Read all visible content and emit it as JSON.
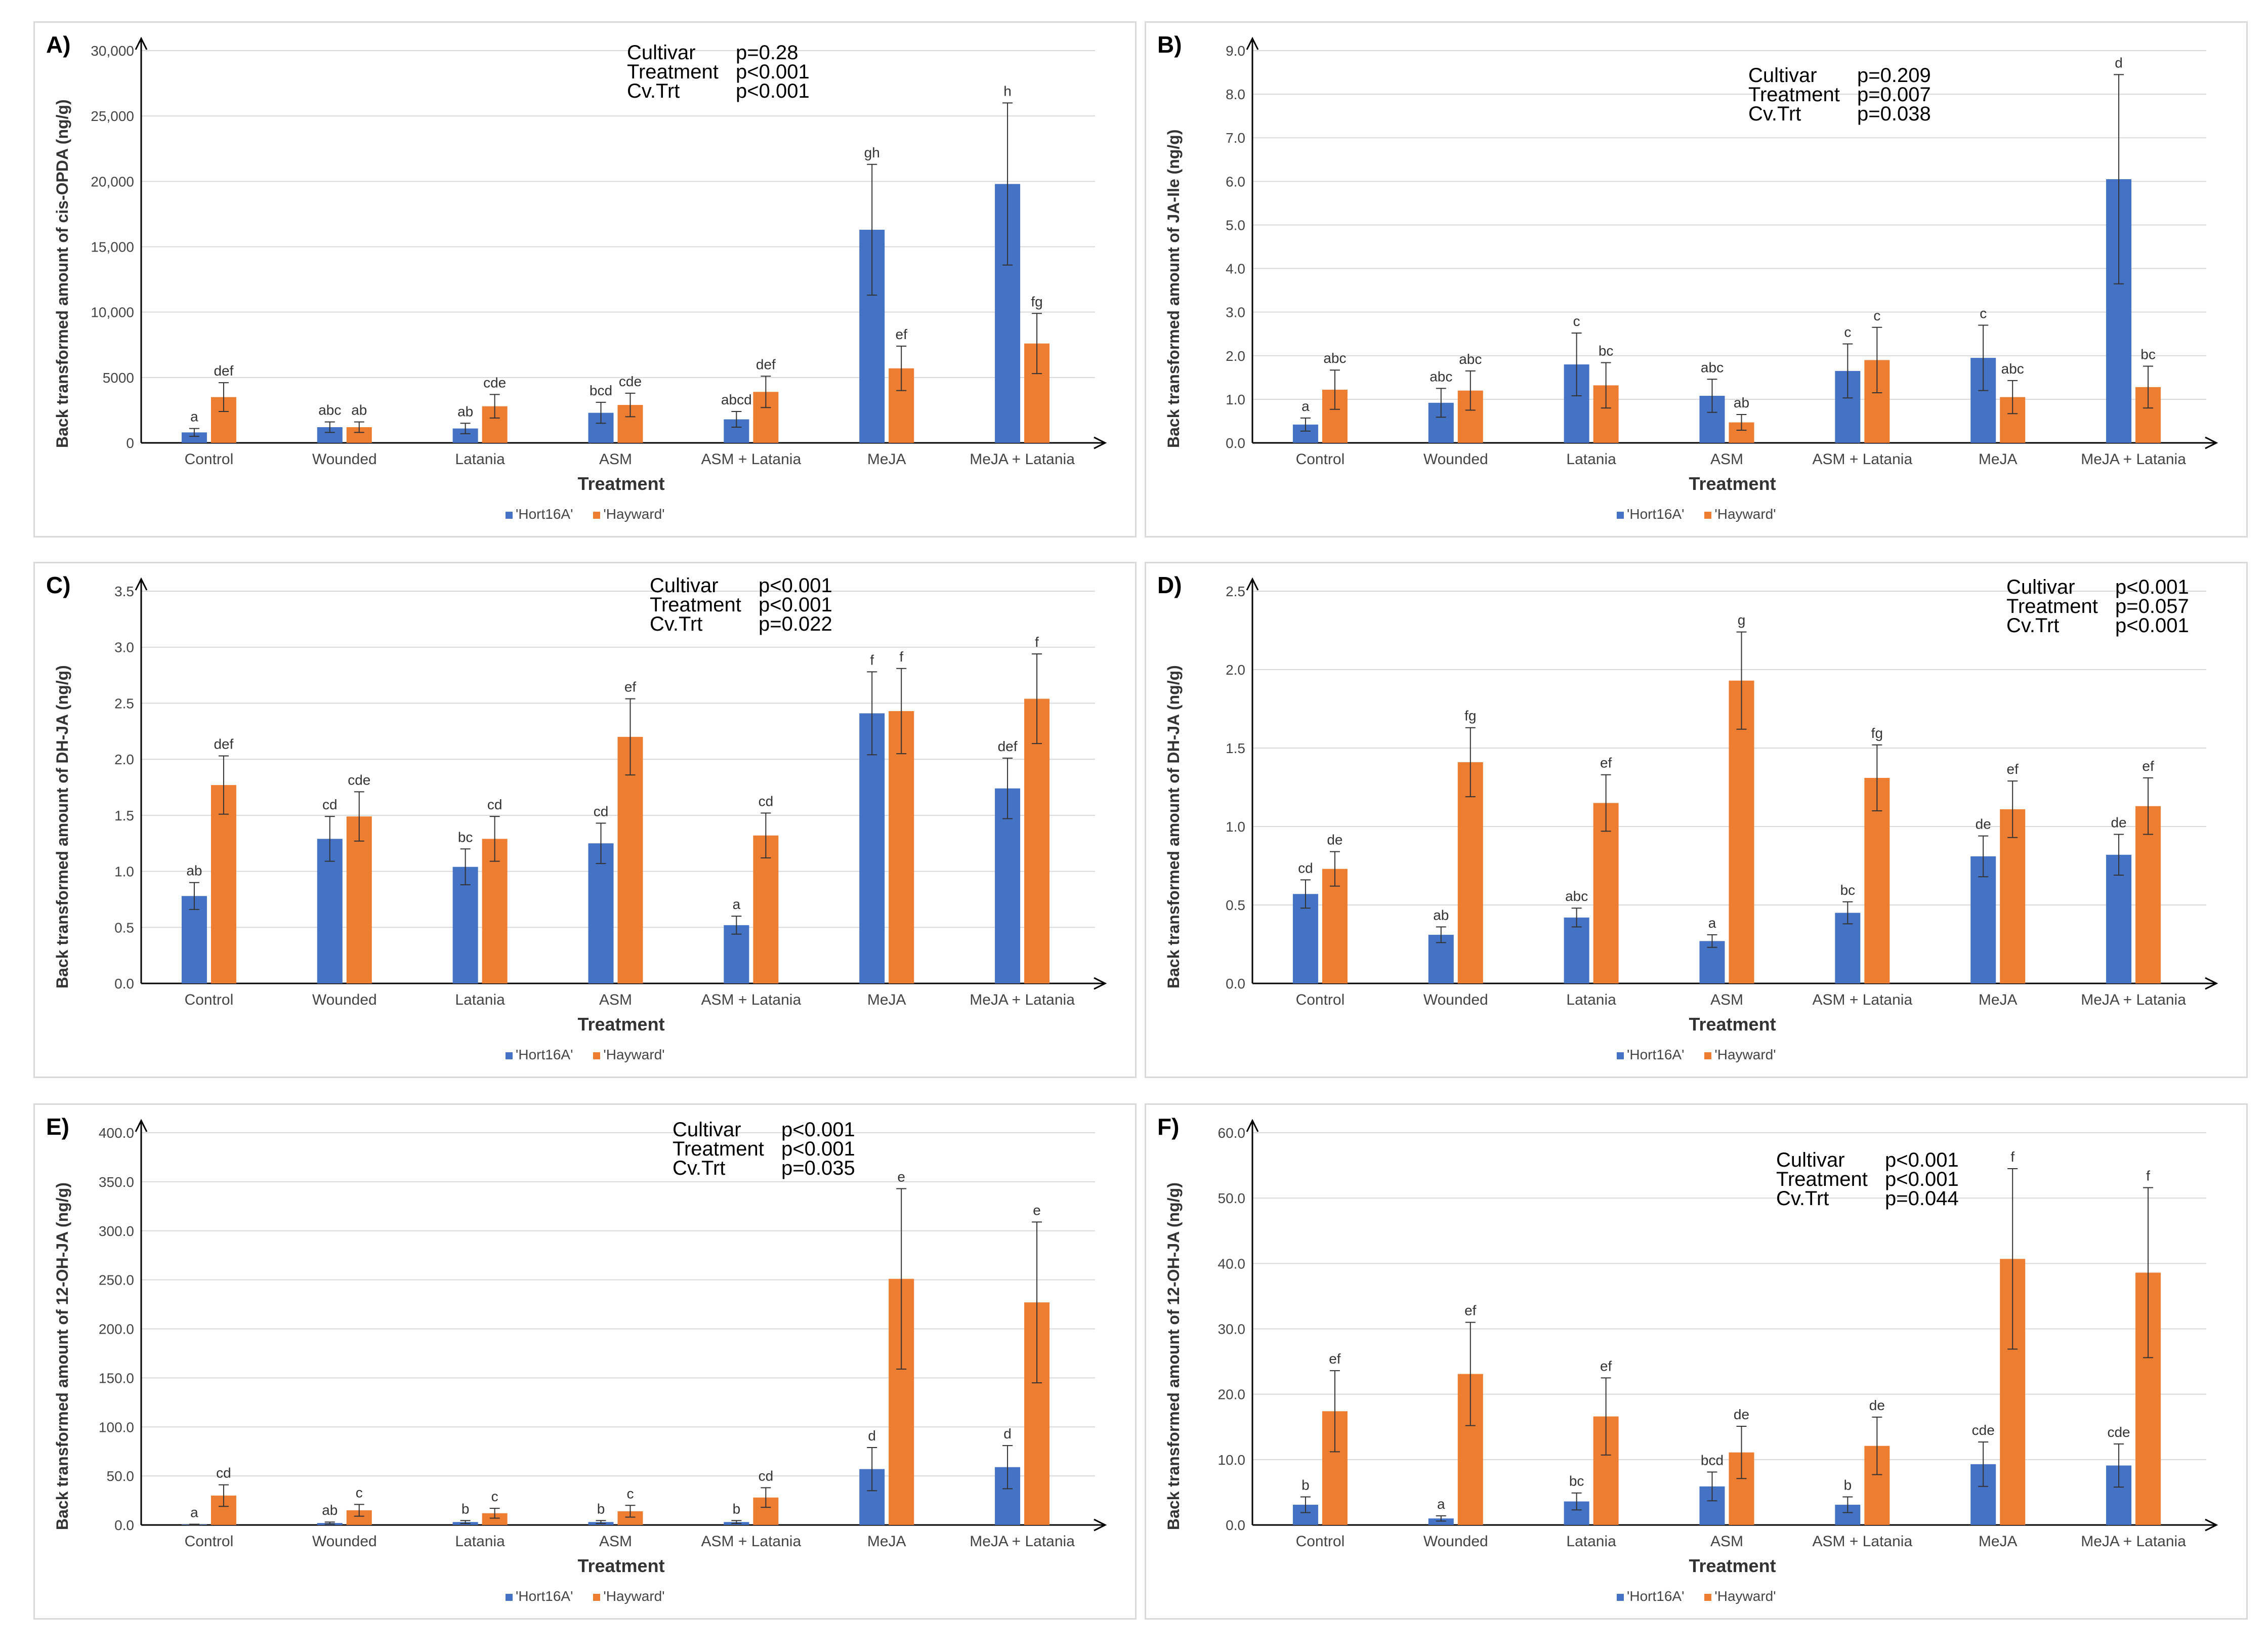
{
  "legend": {
    "series1": "'Hort16A'",
    "series2": "'Hayward'"
  },
  "colors": {
    "series1": "#4472C4",
    "series2": "#ED7D31"
  },
  "chart_data": [
    {
      "type": "bar",
      "panel": "A)",
      "categories": [
        "Control",
        "Wounded",
        "Latania",
        "ASM",
        "ASM + Latania",
        "MeJA",
        "MeJA + Latania"
      ],
      "xlabel": "Treatment",
      "ylabel": "Back transformed amount of cis-OPDA (ng/g)",
      "ylim": [
        0,
        30000
      ],
      "yticks": [
        0,
        5000,
        10000,
        15000,
        20000,
        25000,
        30000
      ],
      "ytick_labels": [
        "0",
        "5000",
        "10,000",
        "15,000",
        "20,000",
        "25,000",
        "30,000"
      ],
      "stats": [
        [
          "Cultivar",
          "p=0.28"
        ],
        [
          "Treatment",
          "p<0.001"
        ],
        [
          "Cv.Trt",
          "p<0.001"
        ]
      ],
      "series": [
        {
          "name": "'Hort16A'",
          "values": [
            800,
            1200,
            1100,
            2300,
            1800,
            16300,
            19800
          ],
          "err": [
            300,
            400,
            400,
            800,
            600,
            5000,
            6200
          ],
          "letters": [
            "a",
            "abc",
            "ab",
            "bcd",
            "abcd",
            "gh",
            "h"
          ]
        },
        {
          "name": "'Hayward'",
          "values": [
            3500,
            1200,
            2800,
            2900,
            3900,
            5700,
            7600
          ],
          "err": [
            1100,
            400,
            900,
            900,
            1200,
            1700,
            2300
          ],
          "letters": [
            "def",
            "ab",
            "cde",
            "cde",
            "def",
            "ef",
            "fg"
          ]
        }
      ]
    },
    {
      "type": "bar",
      "panel": "B)",
      "categories": [
        "Control",
        "Wounded",
        "Latania",
        "ASM",
        "ASM + Latania",
        "MeJA",
        "MeJA + Latania"
      ],
      "xlabel": "Treatment",
      "ylabel": "Back transformed amount of JA-Ile (ng/g)",
      "ylim": [
        0,
        9
      ],
      "yticks": [
        0,
        1,
        2,
        3,
        4,
        5,
        6,
        7,
        8,
        9
      ],
      "ytick_labels": [
        "0.0",
        "1.0",
        "2.0",
        "3.0",
        "4.0",
        "5.0",
        "6.0",
        "7.0",
        "8.0",
        "9.0"
      ],
      "stats": [
        [
          "Cultivar",
          "p=0.209"
        ],
        [
          "Treatment",
          "p=0.007"
        ],
        [
          "Cv.Trt",
          "p=0.038"
        ]
      ],
      "series": [
        {
          "name": "'Hort16A'",
          "values": [
            0.42,
            0.92,
            1.8,
            1.08,
            1.65,
            1.95,
            6.05
          ],
          "err": [
            0.15,
            0.33,
            0.72,
            0.38,
            0.62,
            0.75,
            2.4
          ],
          "letters": [
            "a",
            "abc",
            "c",
            "abc",
            "c",
            "c",
            "d"
          ]
        },
        {
          "name": "'Hayward'",
          "values": [
            1.22,
            1.2,
            1.32,
            0.47,
            1.9,
            1.05,
            1.28
          ],
          "err": [
            0.45,
            0.45,
            0.52,
            0.18,
            0.75,
            0.38,
            0.48
          ],
          "letters": [
            "abc",
            "abc",
            "bc",
            "ab",
            "c",
            "abc",
            "bc"
          ]
        }
      ]
    },
    {
      "type": "bar",
      "panel": "C)",
      "categories": [
        "Control",
        "Wounded",
        "Latania",
        "ASM",
        "ASM + Latania",
        "MeJA",
        "MeJA + Latania"
      ],
      "xlabel": "Treatment",
      "ylabel": "Back transformed amount of DH-JA (ng/g)",
      "ylim": [
        0,
        3.5
      ],
      "yticks": [
        0,
        0.5,
        1,
        1.5,
        2,
        2.5,
        3,
        3.5
      ],
      "ytick_labels": [
        "0.0",
        "0.5",
        "1.0",
        "1.5",
        "2.0",
        "2.5",
        "3.0",
        "3.5"
      ],
      "stats": [
        [
          "Cultivar",
          "p<0.001"
        ],
        [
          "Treatment",
          "p<0.001"
        ],
        [
          "Cv.Trt",
          "p=0.022"
        ]
      ],
      "series": [
        {
          "name": "'Hort16A'",
          "values": [
            0.78,
            1.29,
            1.04,
            1.25,
            0.52,
            2.41,
            1.74
          ],
          "err": [
            0.12,
            0.2,
            0.16,
            0.18,
            0.08,
            0.37,
            0.27
          ],
          "letters": [
            "ab",
            "cd",
            "bc",
            "cd",
            "a",
            "f",
            "def"
          ]
        },
        {
          "name": "'Hayward'",
          "values": [
            1.77,
            1.49,
            1.29,
            2.2,
            1.32,
            2.43,
            2.54
          ],
          "err": [
            0.26,
            0.22,
            0.2,
            0.34,
            0.2,
            0.38,
            0.4
          ],
          "letters": [
            "def",
            "cde",
            "cd",
            "ef",
            "cd",
            "f",
            "f"
          ]
        }
      ]
    },
    {
      "type": "bar",
      "panel": "D)",
      "categories": [
        "Control",
        "Wounded",
        "Latania",
        "ASM",
        "ASM + Latania",
        "MeJA",
        "MeJA + Latania"
      ],
      "xlabel": "Treatment",
      "ylabel": "Back transformed amount of DH-JA (ng/g)",
      "ylim": [
        0,
        2.5
      ],
      "yticks": [
        0,
        0.5,
        1,
        1.5,
        2,
        2.5
      ],
      "ytick_labels": [
        "0.0",
        "0.5",
        "1.0",
        "1.5",
        "2.0",
        "2.5"
      ],
      "stats": [
        [
          "Cultivar",
          "p<0.001"
        ],
        [
          "Treatment",
          "p=0.057"
        ],
        [
          "Cv.Trt",
          "p<0.001"
        ]
      ],
      "series": [
        {
          "name": "'Hort16A'",
          "values": [
            0.57,
            0.31,
            0.42,
            0.27,
            0.45,
            0.81,
            0.82
          ],
          "err": [
            0.09,
            0.05,
            0.06,
            0.04,
            0.07,
            0.13,
            0.13
          ],
          "letters": [
            "cd",
            "ab",
            "abc",
            "a",
            "bc",
            "de",
            "de"
          ]
        },
        {
          "name": "'Hayward'",
          "values": [
            0.73,
            1.41,
            1.15,
            1.93,
            1.31,
            1.11,
            1.13
          ],
          "err": [
            0.11,
            0.22,
            0.18,
            0.31,
            0.21,
            0.18,
            0.18
          ],
          "letters": [
            "de",
            "fg",
            "ef",
            "g",
            "fg",
            "ef",
            "ef"
          ]
        }
      ]
    },
    {
      "type": "bar",
      "panel": "E)",
      "categories": [
        "Control",
        "Wounded",
        "Latania",
        "ASM",
        "ASM + Latania",
        "MeJA",
        "MeJA + Latania"
      ],
      "xlabel": "Treatment",
      "ylabel": "Back transformed  amount of 12-OH-JA (ng/g)",
      "ylim": [
        0,
        400
      ],
      "yticks": [
        0,
        50,
        100,
        150,
        200,
        250,
        300,
        350,
        400
      ],
      "ytick_labels": [
        "0.0",
        "50.0",
        "100.0",
        "150.0",
        "200.0",
        "250.0",
        "300.0",
        "350.0",
        "400.0"
      ],
      "stats": [
        [
          "Cultivar",
          "p<0.001"
        ],
        [
          "Treatment",
          "p<0.001"
        ],
        [
          "Cv.Trt",
          "p=0.035"
        ]
      ],
      "series": [
        {
          "name": "'Hort16A'",
          "values": [
            0.5,
            2,
            3,
            3,
            3,
            57,
            59
          ],
          "err": [
            0.3,
            1,
            1.5,
            1.5,
            1.5,
            22,
            22
          ],
          "letters": [
            "a",
            "ab",
            "b",
            "b",
            "b",
            "d",
            "d"
          ]
        },
        {
          "name": "'Hayward'",
          "values": [
            30,
            15,
            12,
            14,
            28,
            251,
            227
          ],
          "err": [
            11,
            6,
            5,
            6,
            10,
            92,
            82
          ],
          "letters": [
            "cd",
            "c",
            "c",
            "c",
            "cd",
            "e",
            "e"
          ]
        }
      ]
    },
    {
      "type": "bar",
      "panel": "F)",
      "categories": [
        "Control",
        "Wounded",
        "Latania",
        "ASM",
        "ASM + Latania",
        "MeJA",
        "MeJA + Latania"
      ],
      "xlabel": "Treatment",
      "ylabel": "Back transformed amount of 12-OH-JA (ng/g)",
      "ylim": [
        0,
        60
      ],
      "yticks": [
        0,
        10,
        20,
        30,
        40,
        50,
        60
      ],
      "ytick_labels": [
        "0.0",
        "10.0",
        "20.0",
        "30.0",
        "40.0",
        "50.0",
        "60.0"
      ],
      "stats": [
        [
          "Cultivar",
          "p<0.001"
        ],
        [
          "Treatment",
          "p<0.001"
        ],
        [
          "Cv.Trt",
          "p=0.044"
        ]
      ],
      "series": [
        {
          "name": "'Hort16A'",
          "values": [
            3.1,
            1,
            3.6,
            5.9,
            3.1,
            9.3,
            9.1
          ],
          "err": [
            1.2,
            0.4,
            1.3,
            2.2,
            1.2,
            3.4,
            3.3
          ],
          "letters": [
            "b",
            "a",
            "bc",
            "bcd",
            "b",
            "cde",
            "cde"
          ]
        },
        {
          "name": "'Hayward'",
          "values": [
            17.4,
            23.1,
            16.6,
            11.1,
            12.1,
            40.7,
            38.6
          ],
          "err": [
            6.2,
            7.9,
            5.9,
            4.0,
            4.4,
            13.8,
            13.0
          ],
          "letters": [
            "ef",
            "ef",
            "ef",
            "de",
            "de",
            "f",
            "f"
          ]
        }
      ]
    }
  ]
}
